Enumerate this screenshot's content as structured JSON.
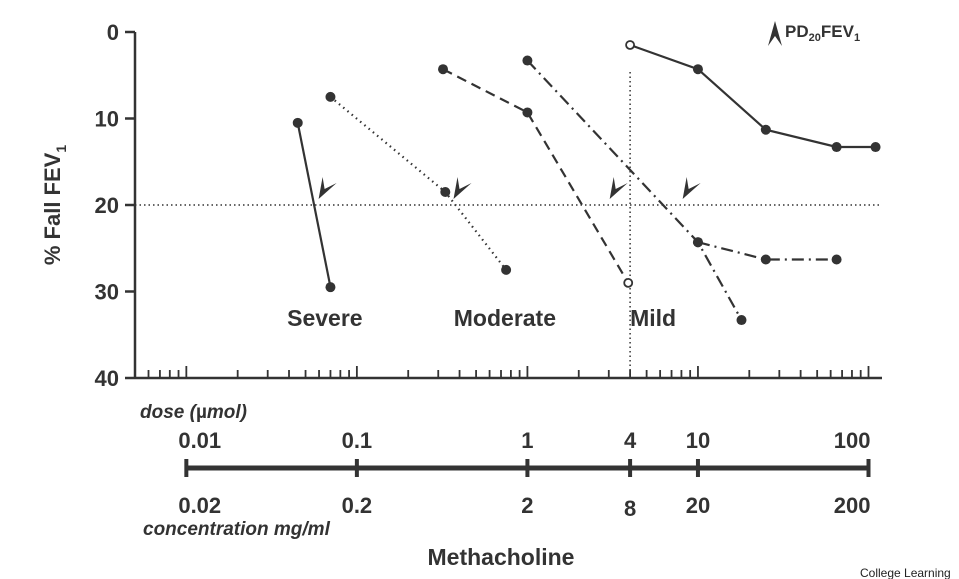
{
  "chart_data": {
    "type": "line",
    "title": "",
    "legend_text": "PD",
    "legend_sub": "20",
    "legend_text2": "FEV",
    "legend_sub2": "1",
    "ylabel": "% Fall FEV",
    "ylabel_sub": "1",
    "ylim": [
      0,
      40
    ],
    "y_inverted": true,
    "yticks": [
      "0",
      "10",
      "20",
      "30",
      "40"
    ],
    "x_scale": "log",
    "xlim": [
      0.005,
      120
    ],
    "dose_label_a": "dose (",
    "dose_label_mu": "µ",
    "dose_label_b": "mol)",
    "dose_ticks": [
      {
        "v": 0.01,
        "label": "0.01"
      },
      {
        "v": 0.1,
        "label": "0.1"
      },
      {
        "v": 1,
        "label": "1"
      },
      {
        "v": 4,
        "label": "4"
      },
      {
        "v": 10,
        "label": "10"
      },
      {
        "v": 100,
        "label": "100"
      }
    ],
    "conc_ticks": [
      "0.02",
      "0.2",
      "2",
      "8",
      "20",
      "200"
    ],
    "conc_label": "concentration mg/ml",
    "xlabel": "Methacholine",
    "categories": [
      {
        "label": "Severe",
        "x": 0.039
      },
      {
        "label": "Moderate",
        "x": 0.37
      },
      {
        "label": "Mild",
        "x": 4.0
      }
    ],
    "reference_lines": {
      "y": 20,
      "x": 4
    },
    "series": [
      {
        "style": "solid",
        "points": [
          [
            0.045,
            10.5
          ],
          [
            0.07,
            29.5
          ]
        ]
      },
      {
        "style": "dotted",
        "points": [
          [
            0.07,
            7.5
          ],
          [
            0.33,
            18.5
          ],
          [
            0.75,
            27.5
          ]
        ]
      },
      {
        "style": "dashed",
        "points": [
          [
            0.32,
            4.3
          ],
          [
            1.0,
            9.3
          ],
          [
            3.9,
            29.0
          ]
        ]
      },
      {
        "style": "dashdot",
        "points": [
          [
            1.0,
            3.3
          ],
          [
            10,
            24.3
          ],
          [
            18,
            33.3
          ]
        ]
      },
      {
        "style": "dashdot",
        "points": [
          [
            10,
            24.3
          ],
          [
            25,
            26.3
          ],
          [
            65,
            26.3
          ]
        ]
      },
      {
        "style": "solid",
        "points": [
          [
            4.0,
            1.5
          ],
          [
            10,
            4.3
          ],
          [
            25,
            11.3
          ],
          [
            65,
            13.3
          ],
          [
            110,
            13.3
          ]
        ]
      }
    ],
    "open_markers": [
      [
        4.0,
        1.5
      ],
      [
        3.9,
        29.0
      ]
    ],
    "pd20_markers": [
      {
        "x": 0.055,
        "y": 20
      },
      {
        "x": 0.34,
        "y": 20
      },
      {
        "x": 2.8,
        "y": 20
      },
      {
        "x": 7.5,
        "y": 20
      }
    ]
  },
  "credit": "College Learning"
}
